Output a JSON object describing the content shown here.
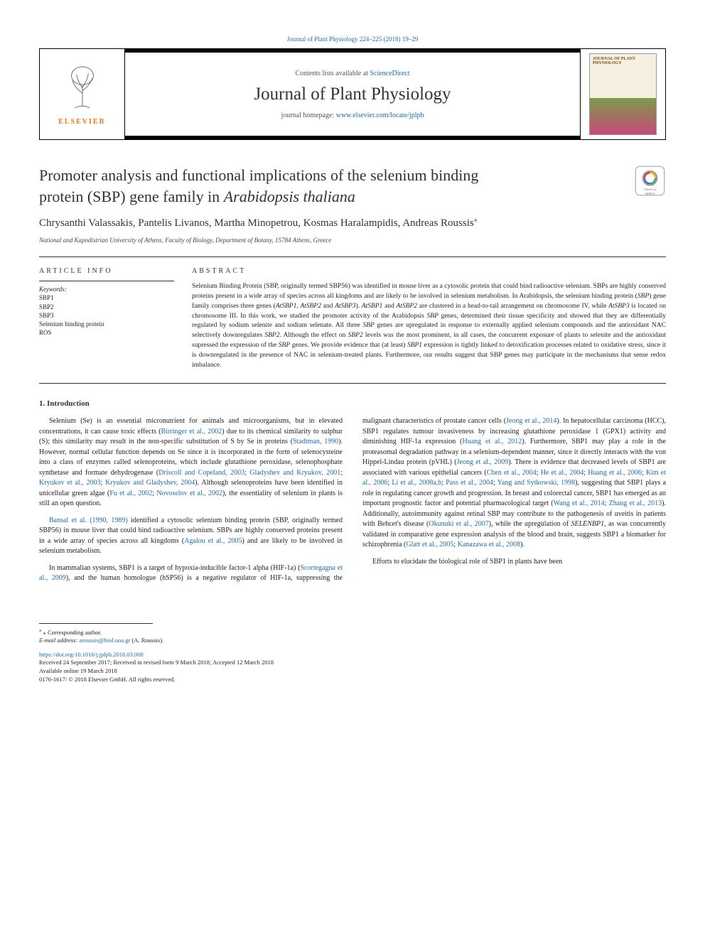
{
  "top_link": {
    "prefix": "Journal of Plant Physiology 224–225 (2018) 19–29"
  },
  "header": {
    "contents_prefix": "Contents lists available at ",
    "contents_link": "ScienceDirect",
    "journal_title": "Journal of Plant Physiology",
    "homepage_prefix": "journal homepage: ",
    "homepage_link": "www.elsevier.com/locate/jplph",
    "elsevier_label": "ELSEVIER",
    "cover_title": "JOURNAL OF PLANT PHYSIOLOGY"
  },
  "article": {
    "title_line1": "Promoter analysis and functional implications of the selenium binding",
    "title_line2_a": "protein (SBP) gene family in ",
    "title_line2_b": "Arabidopsis thaliana",
    "authors": "Chrysanthi Valassakis, Pantelis Livanos, Martha Minopetrou, Kosmas Haralampidis, Andreas Roussis",
    "corresponding_marker": "⁎",
    "affiliation": "National and Kapodistrian University of Athens, Faculty of Biology, Department of Botany, 15784 Athens, Greece"
  },
  "article_info": {
    "heading": "ARTICLE INFO",
    "keywords_label": "Keywords:",
    "keywords": [
      "SBP1",
      "SBP2",
      "SBP3",
      "Selenium binding protein",
      "ROS"
    ]
  },
  "abstract": {
    "heading": "ABSTRACT",
    "text_parts": [
      {
        "t": "Selenium Binding Protein (SBP, originally termed SBP56) was identified in mouse liver as a cytosolic protein that could bind radioactive selenium. SBPs are highly conserved proteins present in a wide array of species across all kingdoms and are likely to be involved in selenium metabolism. In Arabidopsis, the selenium binding protein ("
      },
      {
        "t": "SBP",
        "i": true
      },
      {
        "t": ") gene family comprises three genes ("
      },
      {
        "t": "AtSBP1",
        "i": true
      },
      {
        "t": ", "
      },
      {
        "t": "AtSBP2",
        "i": true
      },
      {
        "t": " and "
      },
      {
        "t": "AtSBP3",
        "i": true
      },
      {
        "t": "). "
      },
      {
        "t": "AtSBP1",
        "i": true
      },
      {
        "t": " and "
      },
      {
        "t": "AtSBP2",
        "i": true
      },
      {
        "t": " are clustered in a head-to-tail arrangement on chromosome IV, while "
      },
      {
        "t": "AtSBP3",
        "i": true
      },
      {
        "t": " is located on chromosome III. In this work, we studied the promoter activity of the Arabidopsis "
      },
      {
        "t": "SBP",
        "i": true
      },
      {
        "t": " genes, determined their tissue specificity and showed that they are differentially regulated by sodium selenite and sodium selenate. All three "
      },
      {
        "t": "SBP",
        "i": true
      },
      {
        "t": " genes are upregulated in response to externally applied selenium compounds and the antioxidant NAC selectively downregulates "
      },
      {
        "t": "SBP2",
        "i": true
      },
      {
        "t": ". Although the effect on "
      },
      {
        "t": "SBP2",
        "i": true
      },
      {
        "t": " levels was the most prominent, in all cases, the concurrent exposure of plants to selenite and the antioxidant supressed the expression of the "
      },
      {
        "t": "SBP",
        "i": true
      },
      {
        "t": " genes. We provide evidence that (at least) "
      },
      {
        "t": "SBP1",
        "i": true
      },
      {
        "t": " expression is tightly linked to detoxification processes related to oxidative stress, since it is downregulated in the presence of NAC in selenium-treated plants. Furthermore, our results suggest that SBP genes may participate in the mechanisms that sense redox imbalance."
      }
    ]
  },
  "intro": {
    "heading": "1. Introduction",
    "paragraphs": [
      [
        {
          "t": "Selenium (Se) is an essential micronutrient for animals and microorganisms, but in elevated concentrations, it can cause toxic effects ("
        },
        {
          "t": "Birringer et al., 2002",
          "r": true
        },
        {
          "t": ") due to its chemical similarity to sulphur (S); this similarity may result in the non-specific substitution of S by Se in proteins ("
        },
        {
          "t": "Stadtman, 1990",
          "r": true
        },
        {
          "t": "). However, normal cellular function depends on Se since it is incorporated in the form of selenocysteine into a class of enzymes called selenoproteins, which include glutathione peroxidase, selenophosphate synthetase and formate dehydrogenase ("
        },
        {
          "t": "Driscoll and Copeland, 2003",
          "r": true
        },
        {
          "t": "; "
        },
        {
          "t": "Gladyshev and Kryukov, 2001",
          "r": true
        },
        {
          "t": "; "
        },
        {
          "t": "Kryukov et al., 2003",
          "r": true
        },
        {
          "t": "; "
        },
        {
          "t": "Kryukov and Gladyshev, 2004",
          "r": true
        },
        {
          "t": "). Although selenoproteins have been identified in unicellular green algae ("
        },
        {
          "t": "Fu et al., 2002",
          "r": true
        },
        {
          "t": "; "
        },
        {
          "t": "Novoselov et al., 2002",
          "r": true
        },
        {
          "t": "), the essentiality of selenium in plants is still an open question."
        }
      ],
      [
        {
          "t": "Bansal et al. (1990, 1989)",
          "r": true
        },
        {
          "t": " identified a cytosolic selenium binding protein (SBP, originally termed SBP56) in mouse liver that could bind radioactive selenium. SBPs are highly conserved proteins present in a wide array of species across all kingdoms ("
        },
        {
          "t": "Agalou et al., 2005",
          "r": true
        },
        {
          "t": ") and are likely to be involved in selenium metabolism."
        }
      ],
      [
        {
          "t": "In mammalian systems, SBP1 is a target of hypoxia-inducible factor-1 alpha (HIF-1a) ("
        },
        {
          "t": "Scortegagna et al., 2009",
          "r": true
        },
        {
          "t": "), and the human homologue (hSP56) is a negative regulator of HIF-1a, suppressing the malignant characteristics of prostate cancer cells ("
        },
        {
          "t": "Jeong et al., 2014",
          "r": true
        },
        {
          "t": "). In hepatocellular carcinoma (HCC), SBP1 regulates tumour invasiveness by increasing glutathione peroxidase 1 (GPX1) activity and diminishing HIF-1a expression ("
        },
        {
          "t": "Huang et al., 2012",
          "r": true
        },
        {
          "t": "). Furthermore, SBP1 may play a role in the proteasomal degradation pathway in a selenium-dependent manner, since it directly interacts with the von Hippel-Lindau protein (pVHL) ("
        },
        {
          "t": "Jeong et al., 2009",
          "r": true
        },
        {
          "t": "). There is evidence that decreased levels of SBP1 are associated with various epithelial cancers ("
        },
        {
          "t": "Chen et al., 2004",
          "r": true
        },
        {
          "t": "; "
        },
        {
          "t": "He et al., 2004",
          "r": true
        },
        {
          "t": "; "
        },
        {
          "t": "Huang et al., 2006",
          "r": true
        },
        {
          "t": "; "
        },
        {
          "t": "Kim et al., 2006",
          "r": true
        },
        {
          "t": "; "
        },
        {
          "t": "Li et al., 2008a,b",
          "r": true
        },
        {
          "t": "; "
        },
        {
          "t": "Pass et al., 2004",
          "r": true
        },
        {
          "t": "; "
        },
        {
          "t": "Yang and Sytkowski, 1998",
          "r": true
        },
        {
          "t": "), suggesting that SBP1 plays a role in regulating cancer growth and progression. In breast and colorectal cancer, SBP1 has emerged as an important prognostic factor and potential pharmacological target ("
        },
        {
          "t": "Wang et al., 2014",
          "r": true
        },
        {
          "t": "; "
        },
        {
          "t": "Zhang et al., 2013",
          "r": true
        },
        {
          "t": "). Additionally, autoimmunity against retinal SBP may contribute to the pathogenesis of uveitis in patients with Behcet's disease ("
        },
        {
          "t": "Okunuki et al., 2007",
          "r": true
        },
        {
          "t": "), while the upregulation of "
        },
        {
          "t": "SELENBP1",
          "i": true
        },
        {
          "t": ", as was concurrently validated in comparative gene expression analysis of the blood and brain, suggests SBP1 a biomarker for schizophrenia ("
        },
        {
          "t": "Glatt et al., 2005",
          "r": true
        },
        {
          "t": "; "
        },
        {
          "t": "Kanazawa et al., 2008",
          "r": true
        },
        {
          "t": ")."
        }
      ],
      [
        {
          "t": "Efforts to elucidate the biological role of SBP1 in plants have been"
        }
      ]
    ]
  },
  "footnotes": {
    "corresponding": "⁎ Corresponding author.",
    "email_label": "E-mail address: ",
    "email": "aroussis@biol.uoa.gr",
    "email_suffix": " (A. Roussis)."
  },
  "doi_block": {
    "doi": "https://doi.org/10.1016/j.jplph.2018.03.008",
    "received": "Received 24 September 2017; Received in revised form 9 March 2018; Accepted 12 March 2018",
    "online": "Available online 19 March 2018",
    "copyright": "0176-1617/ © 2018 Elsevier GmbH. All rights reserved."
  },
  "colors": {
    "link": "#1a6baf",
    "elsevier_orange": "#e67817",
    "text": "#222222"
  }
}
